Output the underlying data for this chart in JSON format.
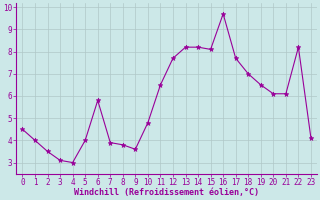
{
  "x": [
    0,
    1,
    2,
    3,
    4,
    5,
    6,
    7,
    8,
    9,
    10,
    11,
    12,
    13,
    14,
    15,
    16,
    17,
    18,
    19,
    20,
    21,
    22,
    23
  ],
  "y": [
    4.5,
    4.0,
    3.5,
    3.1,
    3.0,
    4.0,
    5.8,
    3.9,
    3.8,
    3.6,
    4.8,
    6.5,
    7.7,
    8.2,
    8.2,
    8.1,
    9.7,
    7.7,
    7.0,
    6.5,
    6.1,
    6.1,
    8.2,
    4.1
  ],
  "line_color": "#990099",
  "marker": "*",
  "marker_color": "#990099",
  "bg_color": "#cce8e8",
  "grid_color": "#b0c8c8",
  "xlabel": "Windchill (Refroidissement éolien,°C)",
  "xlabel_color": "#990099",
  "ylim": [
    2.5,
    10.2
  ],
  "xlim": [
    -0.5,
    23.5
  ],
  "yticks": [
    3,
    4,
    5,
    6,
    7,
    8,
    9,
    10
  ],
  "xticks": [
    0,
    1,
    2,
    3,
    4,
    5,
    6,
    7,
    8,
    9,
    10,
    11,
    12,
    13,
    14,
    15,
    16,
    17,
    18,
    19,
    20,
    21,
    22,
    23
  ],
  "tick_color": "#990099",
  "spine_color": "#990099",
  "tick_fontsize": 5.5,
  "xlabel_fontsize": 6.0,
  "linewidth": 0.8,
  "markersize": 3.5
}
